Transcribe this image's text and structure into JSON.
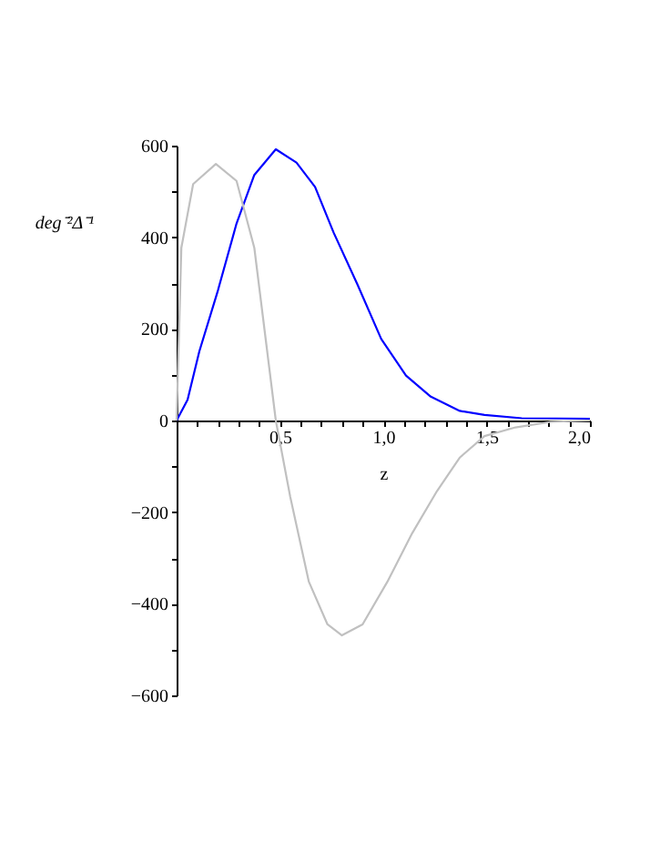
{
  "chart_data": {
    "type": "line",
    "xlabel": "z",
    "ylabel": "deg⁻²Δ⁻¹",
    "x": [
      0,
      0.053,
      0.11,
      0.2,
      0.29,
      0.376,
      0.48,
      0.58,
      0.67,
      0.76,
      0.875,
      0.99,
      1.11,
      1.23,
      1.37,
      1.49,
      1.67,
      2.0
    ],
    "series": [
      {
        "color": "#0000ff",
        "values": [
          0,
          45,
          151,
          284,
          430,
          536,
          592,
          563,
          510,
          410,
          297,
          178,
          98,
          52,
          21,
          12,
          5,
          4
        ]
      },
      {
        "color": "#c0c0c0",
        "x": [
          0,
          0.023,
          0.08,
          0.19,
          0.29,
          0.376,
          0.48,
          0.55,
          0.64,
          0.73,
          0.8,
          0.9,
          1.02,
          1.14,
          1.26,
          1.37,
          1.49,
          1.64,
          1.81,
          2.0
        ],
        "values": [
          0,
          377,
          516,
          560,
          523,
          377,
          0,
          -167,
          -352,
          -445,
          -469,
          -445,
          -352,
          -246,
          -154,
          -81,
          -34,
          -15,
          -3,
          0
        ]
      }
    ],
    "xlim": [
      0,
      2.0
    ],
    "ylim": [
      -600,
      600
    ],
    "xticks": [
      {
        "value": 0.1,
        "label": null
      },
      {
        "value": 0.2,
        "label": null
      },
      {
        "value": 0.3,
        "label": null
      },
      {
        "value": 0.4,
        "label": null
      },
      {
        "value": 0.5,
        "label": "0,5"
      },
      {
        "value": 0.6,
        "label": null
      },
      {
        "value": 0.7,
        "label": null
      },
      {
        "value": 0.8,
        "label": null
      },
      {
        "value": 0.9,
        "label": null
      },
      {
        "value": 1.0,
        "label": "1,0"
      },
      {
        "value": 1.1,
        "label": null
      },
      {
        "value": 1.2,
        "label": null
      },
      {
        "value": 1.3,
        "label": null
      },
      {
        "value": 1.4,
        "label": null
      },
      {
        "value": 1.5,
        "label": "1,5"
      },
      {
        "value": 1.6,
        "label": null
      },
      {
        "value": 1.7,
        "label": null
      },
      {
        "value": 1.8,
        "label": null
      },
      {
        "value": 1.9,
        "label": null
      },
      {
        "value": 2.0,
        "label": "2,0"
      }
    ],
    "yticks": [
      {
        "value": -600,
        "label": "−600"
      },
      {
        "value": -500,
        "label": null
      },
      {
        "value": -400,
        "label": "−400"
      },
      {
        "value": -300,
        "label": null
      },
      {
        "value": -200,
        "label": "−200"
      },
      {
        "value": -100,
        "label": null
      },
      0,
      {
        "value": 100,
        "label": null
      },
      200,
      {
        "value": 300,
        "label": null
      },
      400,
      {
        "value": 500,
        "label": null
      },
      600
    ],
    "grid": false,
    "legend": false,
    "marker": "none",
    "line_style": "solid"
  }
}
